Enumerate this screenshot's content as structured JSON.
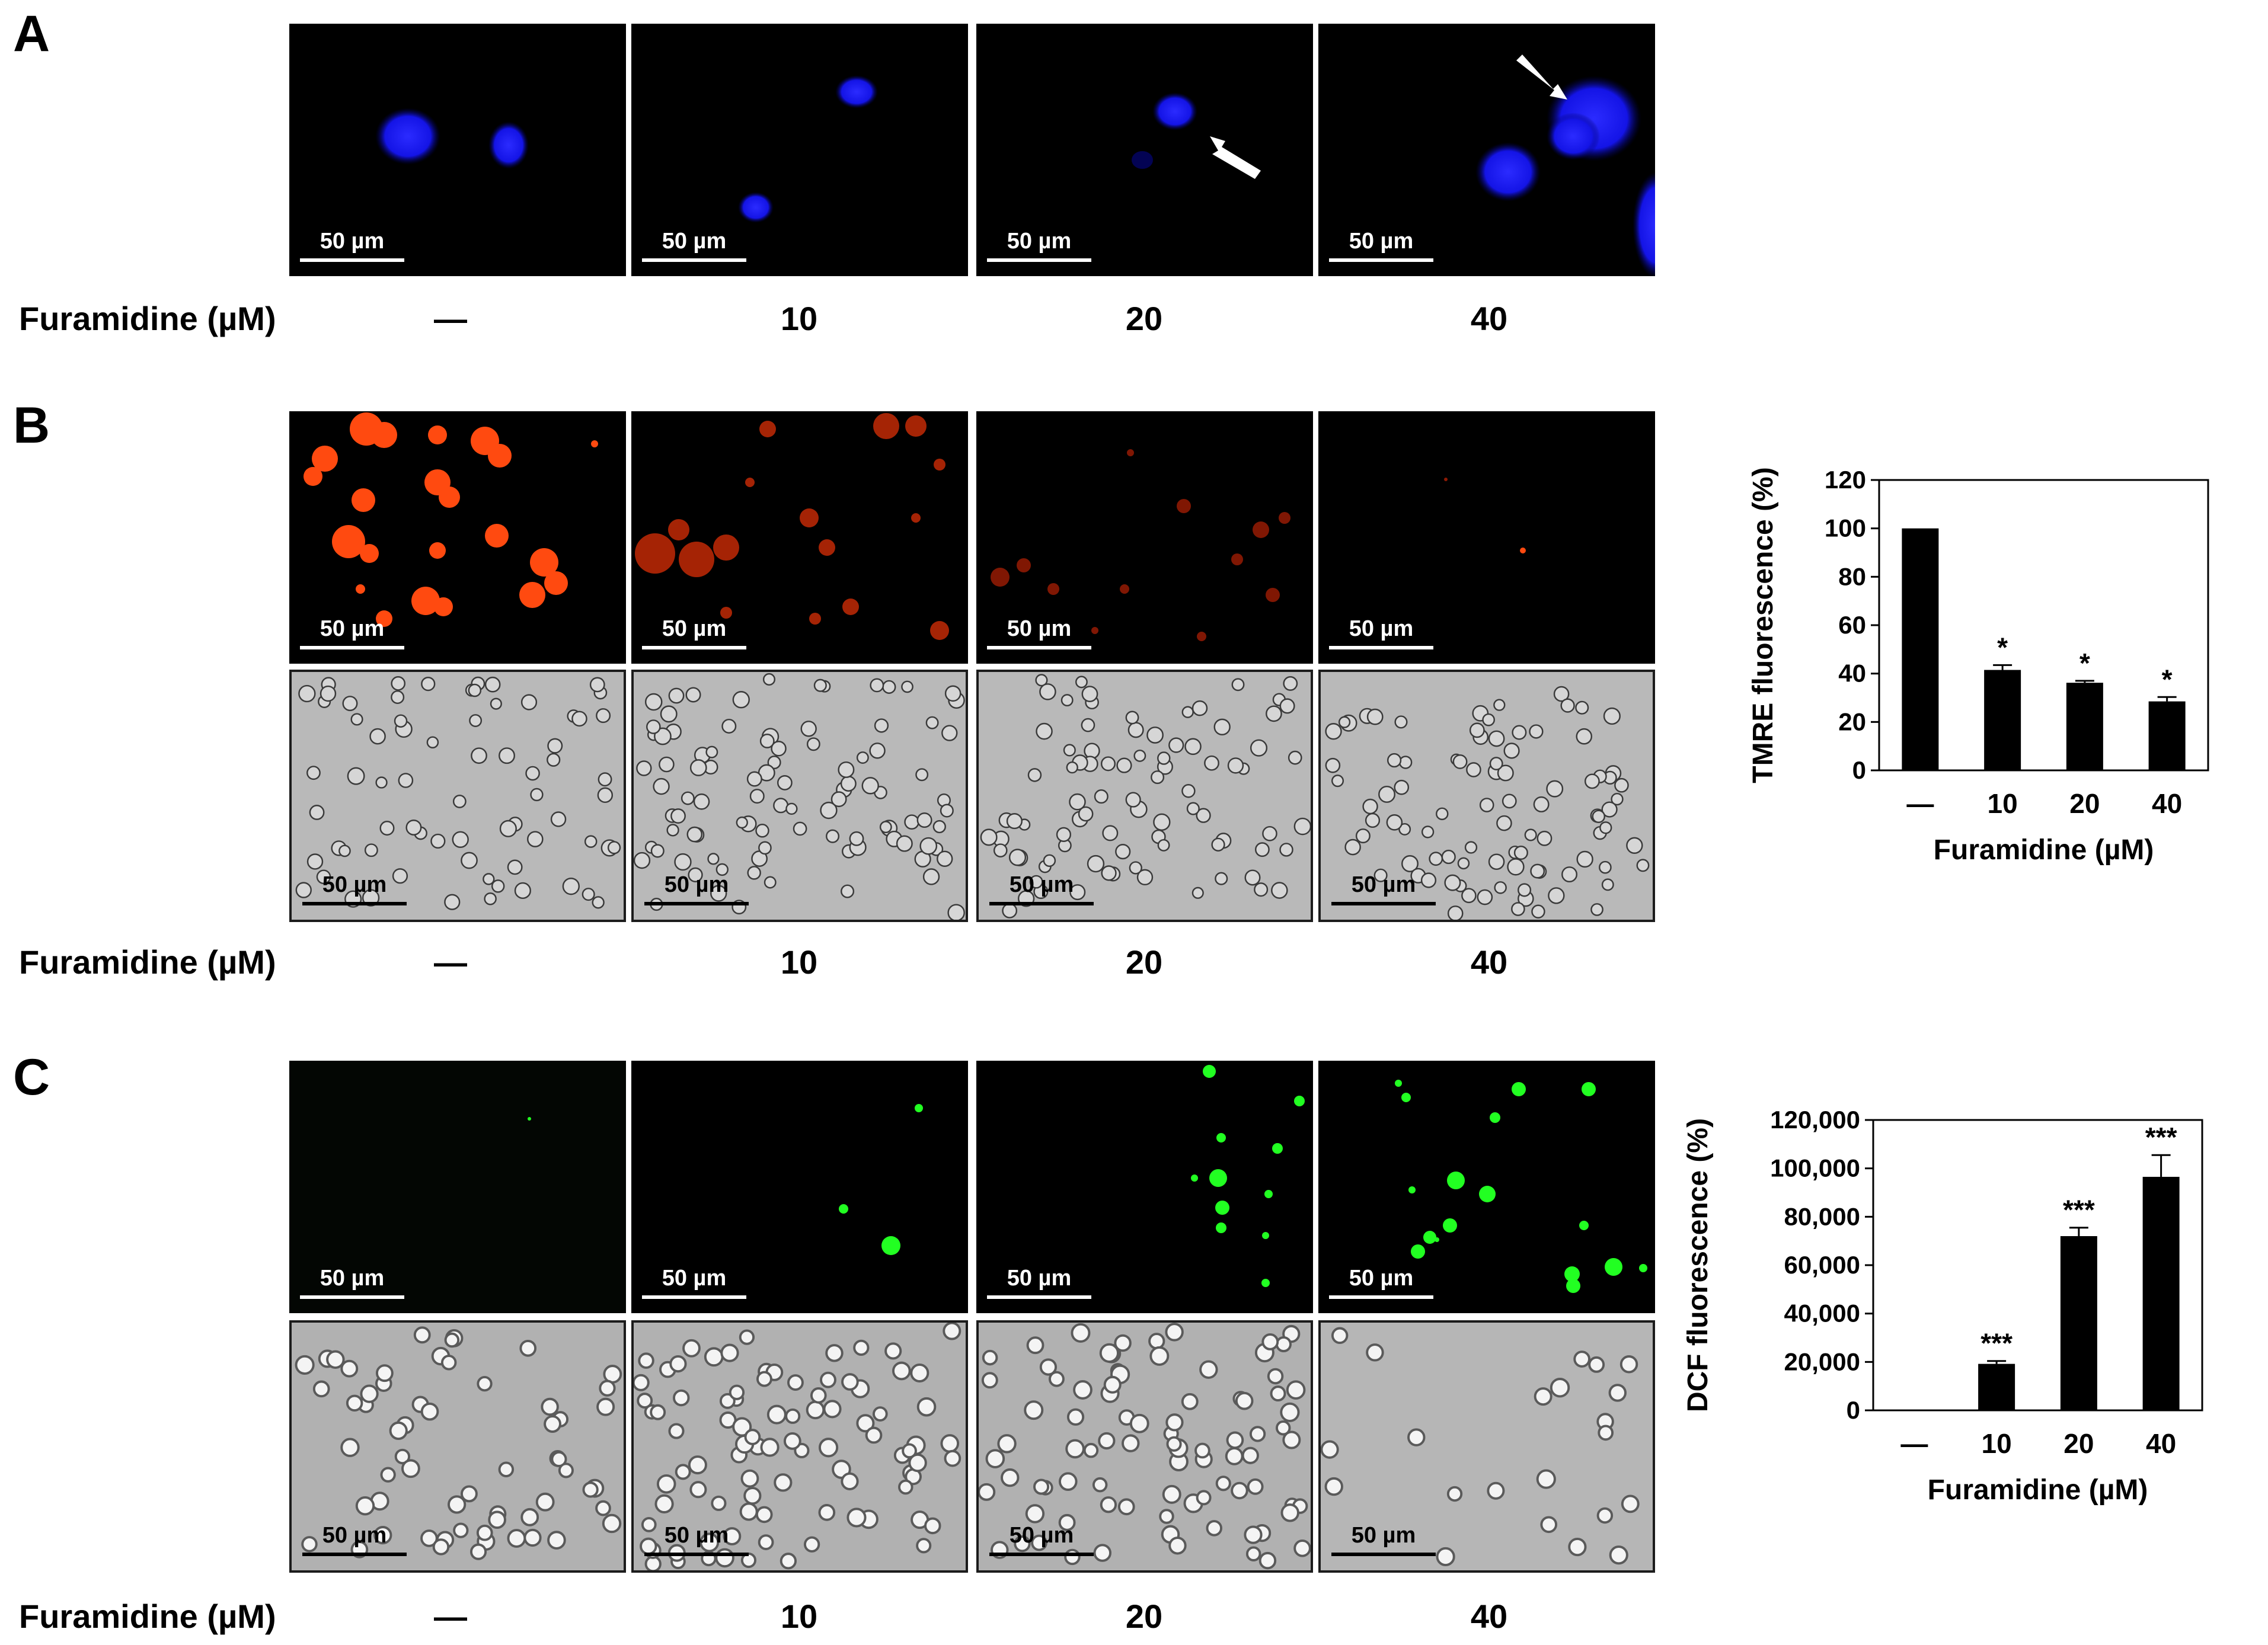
{
  "panels": {
    "A": {
      "letter": "A"
    },
    "B": {
      "letter": "B"
    },
    "C": {
      "letter": "C"
    }
  },
  "scale_bar_label": "50 µm",
  "row_label": "Furamidine (µM)",
  "doses": [
    "—",
    "10",
    "20",
    "40"
  ],
  "colors": {
    "hoechst_blue": "#1a1aff",
    "tmre_red": "#ff4a10",
    "dcf_green": "#22ff22",
    "brightfield_gray": "#b9b9b9",
    "bar_fill": "#000000"
  },
  "chart_data": [
    {
      "type": "bar",
      "panel": "B",
      "categories": [
        "—",
        "10",
        "20",
        "40"
      ],
      "values": [
        100,
        41.5,
        36.2,
        28.5
      ],
      "errors": [
        0,
        2.0,
        0.8,
        1.8
      ],
      "significance": [
        "",
        "*",
        "*",
        "*"
      ],
      "xlabel": "Furamidine (µM)",
      "ylabel": "TMRE fluorescence (%)",
      "ylim": [
        0,
        120
      ],
      "yticks": [
        0,
        20,
        40,
        60,
        80,
        100,
        120
      ],
      "ytick_labels": [
        "0",
        "20",
        "40",
        "60",
        "80",
        "100",
        "120"
      ],
      "grid": false
    },
    {
      "type": "bar",
      "panel": "C",
      "categories": [
        "—",
        "10",
        "20",
        "40"
      ],
      "values": [
        0,
        19200,
        72000,
        96500
      ],
      "errors": [
        0,
        1200,
        3500,
        9000
      ],
      "significance": [
        "",
        "***",
        "***",
        "***"
      ],
      "xlabel": "Furamidine (µM)",
      "ylabel": "DCF fluorescence (%)",
      "ylim": [
        0,
        120000
      ],
      "yticks": [
        0,
        20000,
        40000,
        60000,
        80000,
        100000,
        120000
      ],
      "ytick_labels": [
        "0",
        "20,000",
        "40,000",
        "60,000",
        "80,000",
        "100,000",
        "120,000"
      ],
      "grid": false
    }
  ]
}
